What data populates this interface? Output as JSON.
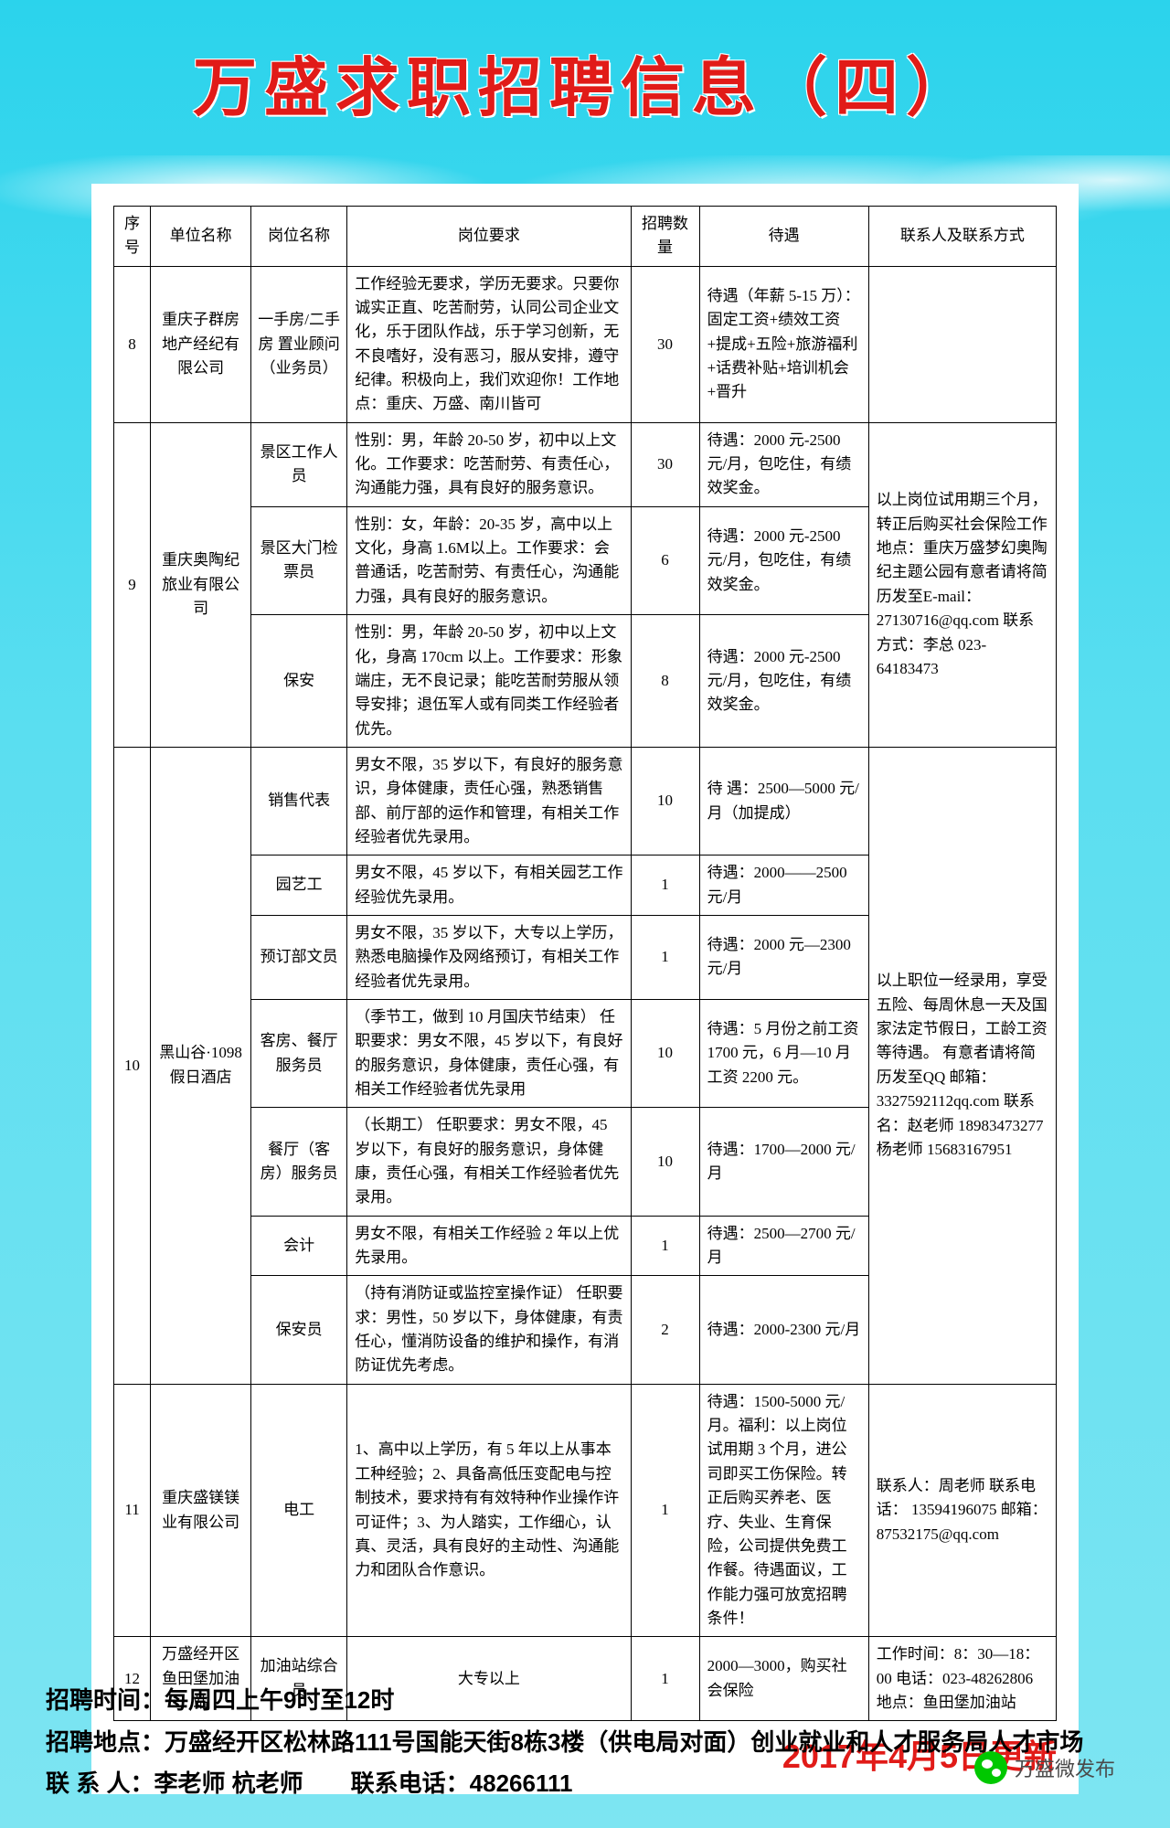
{
  "title": "万盛求职招聘信息（四）",
  "update_date": "2017年4月5日更新",
  "headers": {
    "idx": "序号",
    "company": "单位名称",
    "position": "岗位名称",
    "requirement": "岗位要求",
    "number": "招聘数量",
    "pay": "待遇",
    "contact": "联系人及联系方式"
  },
  "r8": {
    "idx": "8",
    "company": "重庆子群房地产经纪有限公司",
    "pos": "一手房/二手房 置业顾问（业务员）",
    "req": "工作经验无要求，学历无要求。只要你诚实正直、吃苦耐劳，认同公司企业文化，乐于团队作战，乐于学习创新，无不良嗜好，没有恶习，服从安排，遵守纪律。积极向上，我们欢迎你！工作地点：重庆、万盛、南川皆可",
    "num": "30",
    "pay": "待遇（年薪 5-15 万）：固定工资+绩效工资+提成+五险+旅游福利+话费补贴+培训机会+晋升",
    "contact": ""
  },
  "r9": {
    "idx": "9",
    "company": "重庆奥陶纪旅业有限公司",
    "a": {
      "pos": "景区工作人员",
      "req": "性别：男，年龄 20-50 岁，初中以上文化。工作要求：吃苦耐劳、有责任心，沟通能力强，具有良好的服务意识。",
      "num": "30",
      "pay": "待遇：2000 元-2500 元/月，包吃住，有绩效奖金。"
    },
    "b": {
      "pos": "景区大门检票员",
      "req": "性别：女，年龄：20-35 岁，高中以上文化，身高 1.6M以上。工作要求：会普通话，吃苦耐劳、有责任心，沟通能力强，具有良好的服务意识。",
      "num": "6",
      "pay": "待遇：2000 元-2500 元/月，包吃住，有绩效奖金。"
    },
    "c": {
      "pos": "保安",
      "req": "性别：男，年龄 20-50 岁，初中以上文化，身高 170cm 以上。工作要求：形象端庄，无不良记录；能吃苦耐劳服从领导安排；退伍军人或有同类工作经验者优先。",
      "num": "8",
      "pay": "待遇：2000 元-2500 元/月，包吃住，有绩效奖金。"
    },
    "contact": "以上岗位试用期三个月，转正后购买社会保险工作地点：重庆万盛梦幻奥陶纪主题公园有意者请将简历发至E-mail：27130716@qq.com\n联系方式：李总\n023-64183473"
  },
  "r10": {
    "idx": "10",
    "company": "黑山谷·1098 假日酒店",
    "a": {
      "pos": "销售代表",
      "req": "男女不限，35 岁以下，有良好的服务意识，身体健康，责任心强，熟悉销售部、前厅部的运作和管理，有相关工作经验者优先录用。",
      "num": "10",
      "pay": "待 遇：2500—5000 元/月（加提成）"
    },
    "b": {
      "pos": "园艺工",
      "req": "男女不限，45 岁以下，有相关园艺工作经验优先录用。",
      "num": "1",
      "pay": "待遇：2000——2500 元/月"
    },
    "c": {
      "pos": "预订部文员",
      "req": "男女不限，35 岁以下，大专以上学历，熟悉电脑操作及网络预订，有相关工作经验者优先录用。",
      "num": "1",
      "pay": "待遇：2000 元—2300 元/月"
    },
    "d": {
      "pos": "客房、餐厅服务员",
      "req": "（季节工，做到 10 月国庆节结束）\n任职要求：男女不限，45 岁以下，有良好的服务意识，身体健康，责任心强，有相关工作经验者优先录用",
      "num": "10",
      "pay": "待遇：5 月份之前工资 1700 元，6 月—10 月工资 2200 元。"
    },
    "e": {
      "pos": "餐厅（客房）服务员",
      "req": "（长期工）\n任职要求：男女不限，45 岁以下，有良好的服务意识，身体健康，责任心强，有相关工作经验者优先录用。",
      "num": "10",
      "pay": "待遇：1700—2000 元/月"
    },
    "f": {
      "pos": "会计",
      "req": "男女不限，有相关工作经验 2 年以上优先录用。",
      "num": "1",
      "pay": "待遇：2500—2700 元/月"
    },
    "g": {
      "pos": "保安员",
      "req": "（持有消防证或监控室操作证）\n任职要求：男性，50 岁以下，身体健康，有责任心，懂消防设备的维护和操作，有消防证优先考虑。",
      "num": "2",
      "pay": "待遇：2000-2300 元/月"
    },
    "contact": "以上职位一经录用，享受五险、每周休息一天及国家法定节假日，工龄工资等待遇。\n有意者请将简历发至QQ 邮箱：\n3327592112qq.com\n联系名：赵老师\n18983473277\n杨老师\n15683167951"
  },
  "r11": {
    "idx": "11",
    "company": "重庆盛镁镁业有限公司",
    "pos": "电工",
    "req": "1、高中以上学历，有 5 年以上从事本工种经验；2、具备高低压变配电与控制技术，要求持有有效特种作业操作许可证件；3、为人踏实，工作细心，认真、灵活，具有良好的主动性、沟通能力和团队合作意识。",
    "num": "1",
    "pay": "待遇：1500-5000 元/月。福利：以上岗位试用期 3 个月，进公司即买工伤保险。转正后购买养老、医疗、失业、生育保险，公司提供免费工作餐。待遇面议，工作能力强可放宽招聘条件！",
    "contact": "联系人：周老师\n联系电话：\n13594196075\n邮箱：\n87532175@qq.com"
  },
  "r12": {
    "idx": "12",
    "company": "万盛经开区鱼田堡加油站",
    "pos": "加油站综合员",
    "req": "大专以上",
    "num": "1",
    "pay": "2000—3000，购买社会保险",
    "contact": "工作时间：8：30—18：00 电话：023-48262806\n地点：鱼田堡加油站"
  },
  "footer": {
    "l1": "招聘时间：每周四上午9时至12时",
    "l2": "招聘地点：万盛经开区松林路111号国能天街8栋3楼（供电局对面）创业就业和人才服务局人才市场",
    "l3": "联 系 人：李老师 杭老师　　联系电话：48266111"
  },
  "wx_name": "万盛微发布"
}
